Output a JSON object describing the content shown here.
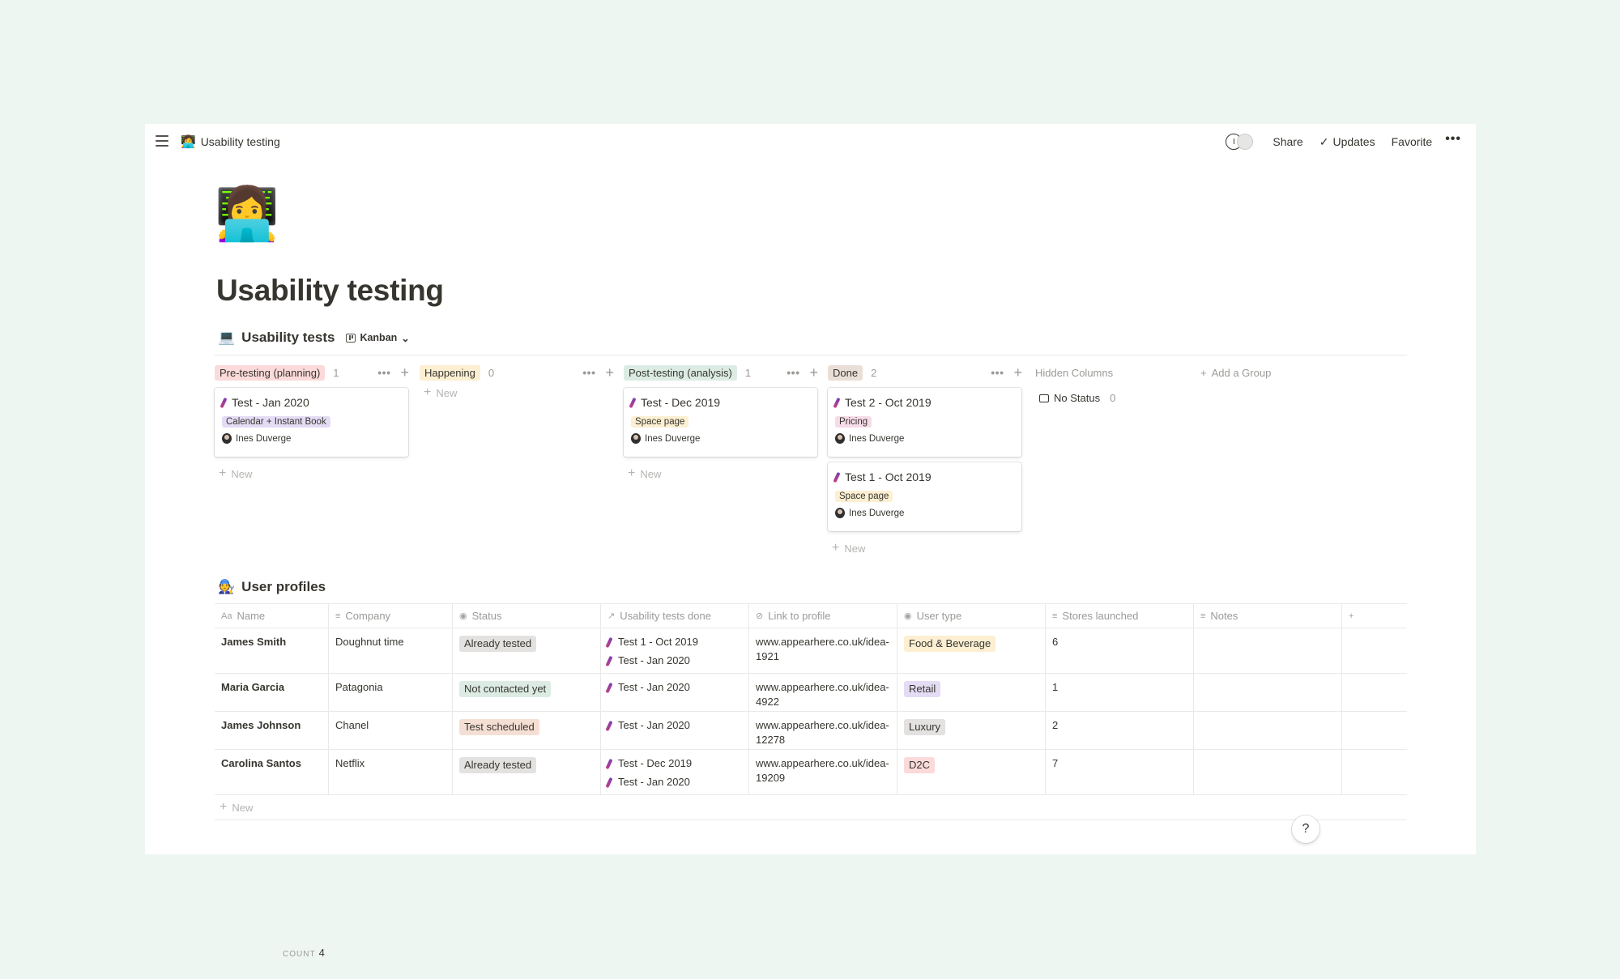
{
  "topbar": {
    "page_emoji": "👩‍💻",
    "breadcrumb": "Usability testing",
    "avatar_1": "I",
    "avatar_2": "",
    "share": "Share",
    "updates_check": "✓",
    "updates": "Updates",
    "favorite": "Favorite",
    "more": "•••"
  },
  "page": {
    "icon": "👩‍💻",
    "title": "Usability testing"
  },
  "board": {
    "emoji": "💻",
    "title": "Usability tests",
    "view": "Kanban",
    "new_label": "New",
    "plus": "+",
    "dots": "•••",
    "caret": "⌄",
    "columns": [
      {
        "label": "Pre-testing (planning)",
        "count": "1",
        "color": "#fbdada",
        "cards": [
          {
            "title": "Test - Jan 2020",
            "tag": "Calendar + Instant Book",
            "tag_color": "#e3dcf4",
            "person": "Ines Duverge"
          }
        ]
      },
      {
        "label": "Happening",
        "count": "0",
        "color": "#fcefd2",
        "cards": []
      },
      {
        "label": "Post-testing (analysis)",
        "count": "1",
        "color": "#dcece5",
        "cards": [
          {
            "title": "Test - Dec 2019",
            "tag": "Space page",
            "tag_color": "#fcefd2",
            "person": "Ines Duverge"
          }
        ]
      },
      {
        "label": "Done",
        "count": "2",
        "color": "#eadfd7",
        "cards": [
          {
            "title": "Test 2 - Oct 2019",
            "tag": "Pricing",
            "tag_color": "#f6dbe8",
            "person": "Ines Duverge"
          },
          {
            "title": "Test 1 - Oct 2019",
            "tag": "Space page",
            "tag_color": "#fcefd2",
            "person": "Ines Duverge"
          }
        ]
      }
    ],
    "hidden_columns": "Hidden Columns",
    "add_group": "Add a Group",
    "no_status": "No Status",
    "no_status_count": "0"
  },
  "table": {
    "emoji": "🧑‍🔧",
    "title": "User profiles",
    "headers": [
      {
        "label": "Name",
        "icon": "Aa"
      },
      {
        "label": "Company",
        "icon": "≡"
      },
      {
        "label": "Status",
        "icon": "◉"
      },
      {
        "label": "Usability tests done",
        "icon": "↗"
      },
      {
        "label": "Link to profile",
        "icon": "⊘"
      },
      {
        "label": "User type",
        "icon": "◉"
      },
      {
        "label": "Stores launched",
        "icon": "≡"
      },
      {
        "label": "Notes",
        "icon": "≡"
      }
    ],
    "add_column": "+",
    "rows": [
      {
        "name": "James Smith",
        "company": "Doughnut time",
        "status": "Already tested",
        "status_color": "#e3e2e0",
        "tests": [
          "Test 1 - Oct 2019",
          "Test - Jan 2020"
        ],
        "link": "www.appearhere.co.uk/idea-1921",
        "user_type": "Food & Beverage",
        "user_type_color": "#fcefd2",
        "stores": "6",
        "notes": ""
      },
      {
        "name": "Maria Garcia",
        "company": "Patagonia",
        "status": "Not contacted yet",
        "status_color": "#dcece5",
        "tests": [
          "Test - Jan 2020"
        ],
        "link": "www.appearhere.co.uk/idea-4922",
        "user_type": "Retail",
        "user_type_color": "#e3dcf4",
        "stores": "1",
        "notes": ""
      },
      {
        "name": "James Johnson",
        "company": "Chanel",
        "status": "Test scheduled",
        "status_color": "#f5dfd4",
        "tests": [
          "Test - Jan 2020"
        ],
        "link": "www.appearhere.co.uk/idea-12278",
        "user_type": "Luxury",
        "user_type_color": "#e3e2e0",
        "stores": "2",
        "notes": ""
      },
      {
        "name": "Carolina Santos",
        "company": "Netflix",
        "status": "Already tested",
        "status_color": "#e3e2e0",
        "tests": [
          "Test - Dec 2019",
          "Test - Jan 2020"
        ],
        "link": "www.appearhere.co.uk/idea-19209",
        "user_type": "D2C",
        "user_type_color": "#fbdada",
        "stores": "7",
        "notes": ""
      }
    ],
    "new_label": "New",
    "count_label": "COUNT",
    "count_value": "4"
  },
  "help": "?"
}
